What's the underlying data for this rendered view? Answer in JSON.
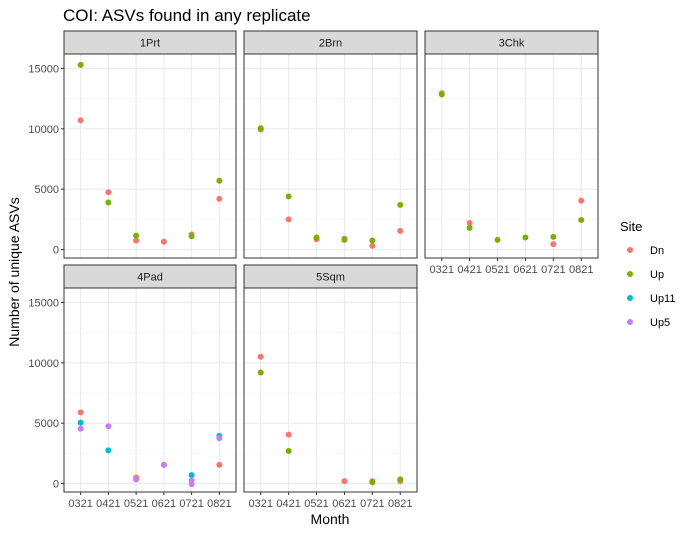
{
  "chart_data": {
    "type": "scatter",
    "title": "COI: ASVs found in any replicate",
    "xlabel": "Month",
    "ylabel": "Number of unique ASVs",
    "categories": [
      "0321",
      "0421",
      "0521",
      "0621",
      "0721",
      "0821"
    ],
    "yticks": [
      0,
      5000,
      10000,
      15000
    ],
    "yticklabels": [
      "0",
      "5000",
      "10000",
      "15000"
    ],
    "ylim": [
      -700,
      16200
    ],
    "grid": true,
    "legend": {
      "title": "Site",
      "placement": "right",
      "entries": [
        {
          "name": "Dn",
          "color": "#F8766D"
        },
        {
          "name": "Up",
          "color": "#7CAE00"
        },
        {
          "name": "Up11",
          "color": "#00BFC4"
        },
        {
          "name": "Up5",
          "color": "#C77CFF"
        }
      ]
    },
    "facets": [
      {
        "label": "1Prt",
        "points": [
          {
            "site": "Dn",
            "x": "0321",
            "y": 10700
          },
          {
            "site": "Up",
            "x": "0321",
            "y": 15300
          },
          {
            "site": "Dn",
            "x": "0421",
            "y": 4750
          },
          {
            "site": "Up",
            "x": "0421",
            "y": 3900
          },
          {
            "site": "Dn",
            "x": "0521",
            "y": 750
          },
          {
            "site": "Up",
            "x": "0521",
            "y": 1150
          },
          {
            "site": "Dn",
            "x": "0621",
            "y": 650
          },
          {
            "site": "Dn",
            "x": "0721",
            "y": 1250
          },
          {
            "site": "Up",
            "x": "0721",
            "y": 1100
          },
          {
            "site": "Dn",
            "x": "0821",
            "y": 4200
          },
          {
            "site": "Up",
            "x": "0821",
            "y": 5700
          }
        ]
      },
      {
        "label": "2Brn",
        "points": [
          {
            "site": "Dn",
            "x": "0321",
            "y": 9950
          },
          {
            "site": "Up",
            "x": "0321",
            "y": 10050
          },
          {
            "site": "Dn",
            "x": "0421",
            "y": 2500
          },
          {
            "site": "Up",
            "x": "0421",
            "y": 4400
          },
          {
            "site": "Dn",
            "x": "0521",
            "y": 850
          },
          {
            "site": "Up",
            "x": "0521",
            "y": 1000
          },
          {
            "site": "Dn",
            "x": "0621",
            "y": 900
          },
          {
            "site": "Up",
            "x": "0621",
            "y": 800
          },
          {
            "site": "Dn",
            "x": "0721",
            "y": 300
          },
          {
            "site": "Up",
            "x": "0721",
            "y": 750
          },
          {
            "site": "Dn",
            "x": "0821",
            "y": 1550
          },
          {
            "site": "Up",
            "x": "0821",
            "y": 3700
          }
        ]
      },
      {
        "label": "3Chk",
        "points": [
          {
            "site": "Dn",
            "x": "0321",
            "y": 12950
          },
          {
            "site": "Up",
            "x": "0321",
            "y": 12850
          },
          {
            "site": "Dn",
            "x": "0421",
            "y": 2200
          },
          {
            "site": "Up",
            "x": "0421",
            "y": 1800
          },
          {
            "site": "Up",
            "x": "0521",
            "y": 800
          },
          {
            "site": "Up",
            "x": "0621",
            "y": 1000
          },
          {
            "site": "Dn",
            "x": "0721",
            "y": 450
          },
          {
            "site": "Up",
            "x": "0721",
            "y": 1050
          },
          {
            "site": "Dn",
            "x": "0821",
            "y": 4050
          },
          {
            "site": "Up",
            "x": "0821",
            "y": 2450
          }
        ]
      },
      {
        "label": "4Pad",
        "points": [
          {
            "site": "Dn",
            "x": "0321",
            "y": 5900
          },
          {
            "site": "Up11",
            "x": "0321",
            "y": 5050
          },
          {
            "site": "Up5",
            "x": "0321",
            "y": 4550
          },
          {
            "site": "Up11",
            "x": "0421",
            "y": 2750
          },
          {
            "site": "Up5",
            "x": "0421",
            "y": 4750
          },
          {
            "site": "Dn",
            "x": "0521",
            "y": 500
          },
          {
            "site": "Up5",
            "x": "0521",
            "y": 350
          },
          {
            "site": "Dn",
            "x": "0621",
            "y": 1550
          },
          {
            "site": "Up5",
            "x": "0621",
            "y": 1550
          },
          {
            "site": "Up11",
            "x": "0721",
            "y": 700
          },
          {
            "site": "Up5",
            "x": "0721",
            "y": 250
          },
          {
            "site": "Up5",
            "x": "0721",
            "y": -50
          },
          {
            "site": "Up11",
            "x": "0821",
            "y": 3950
          },
          {
            "site": "Up5",
            "x": "0821",
            "y": 3750
          },
          {
            "site": "Dn",
            "x": "0821",
            "y": 1550
          }
        ]
      },
      {
        "label": "5Sqm",
        "points": [
          {
            "site": "Dn",
            "x": "0321",
            "y": 10500
          },
          {
            "site": "Up",
            "x": "0321",
            "y": 9200
          },
          {
            "site": "Dn",
            "x": "0421",
            "y": 4050
          },
          {
            "site": "Up",
            "x": "0421",
            "y": 2700
          },
          {
            "site": "Dn",
            "x": "0621",
            "y": 200
          },
          {
            "site": "Dn",
            "x": "0721",
            "y": 200
          },
          {
            "site": "Up",
            "x": "0721",
            "y": 100
          },
          {
            "site": "Dn",
            "x": "0821",
            "y": 200
          },
          {
            "site": "Up",
            "x": "0821",
            "y": 350
          }
        ]
      }
    ]
  }
}
